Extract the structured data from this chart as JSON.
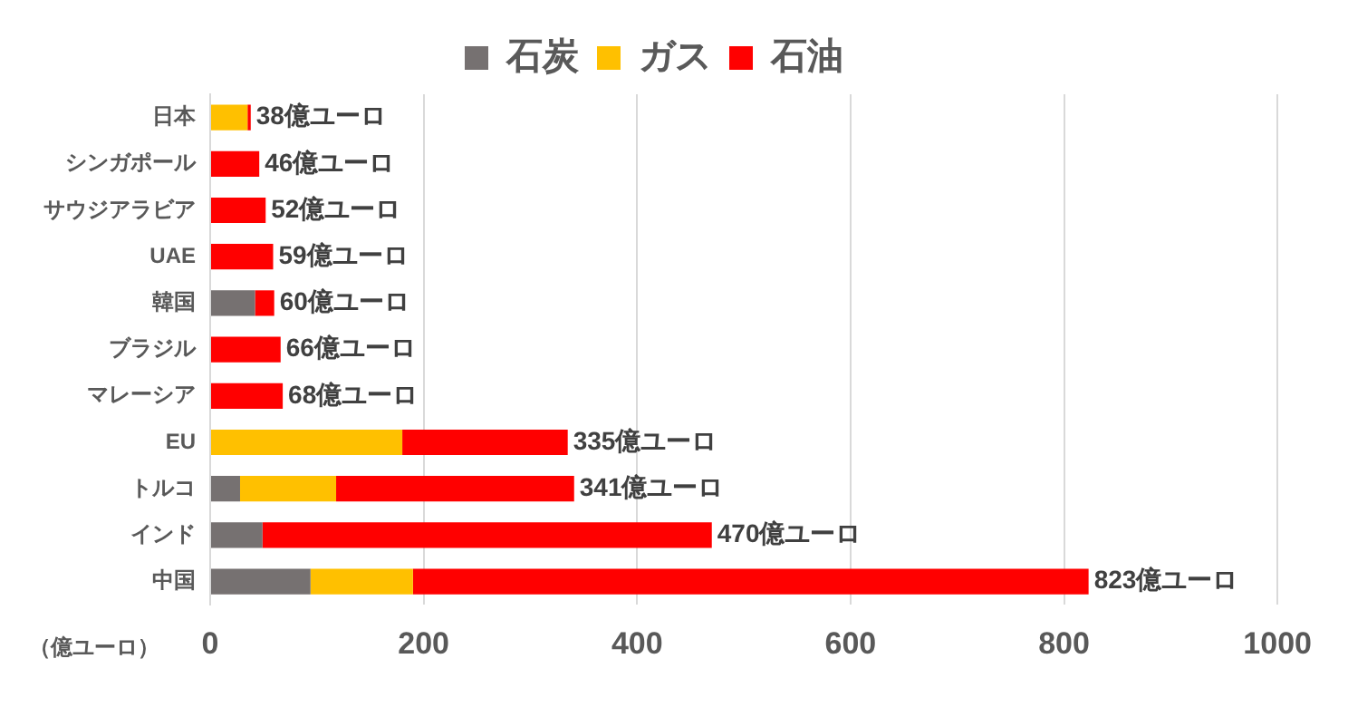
{
  "chart_data": {
    "type": "bar",
    "orientation": "horizontal",
    "stacked": true,
    "categories": [
      "日本",
      "シンガポール",
      "サウジアラビア",
      "UAE",
      "韓国",
      "ブラジル",
      "マレーシア",
      "EU",
      "トルコ",
      "インド",
      "中国"
    ],
    "series": [
      {
        "name": "石炭",
        "color": "#767171",
        "values": [
          null,
          null,
          null,
          null,
          42,
          null,
          null,
          null,
          28,
          49,
          94
        ]
      },
      {
        "name": "ガス",
        "color": "#ffc000",
        "values": [
          35,
          null,
          null,
          null,
          null,
          null,
          null,
          180,
          90,
          null,
          96
        ]
      },
      {
        "name": "石油",
        "color": "#ff0000",
        "values": [
          3,
          46,
          52,
          59,
          18,
          66,
          68,
          155,
          223,
          421,
          633
        ]
      }
    ],
    "totals": [
      "38億ユーロ",
      "46億ユーロ",
      "52億ユーロ",
      "59億ユーロ",
      "60億ユーロ",
      "66億ユーロ",
      "68億ユーロ",
      "335億ユーロ",
      "341億ユーロ",
      "470億ユーロ",
      "823億ユーロ"
    ],
    "xlabel": "（億ユーロ）",
    "xlim": [
      0,
      1000
    ],
    "xticks": [
      0,
      200,
      400,
      600,
      800,
      1000
    ],
    "grid": "x",
    "legend": "top"
  }
}
